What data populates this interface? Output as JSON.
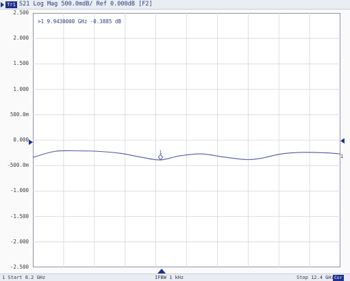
{
  "header": {
    "trace_badge": "Tr1",
    "trace_info": "S21 Log Mag 500.0mdB/ Ref 0.000dB [F2]"
  },
  "marker": {
    "readout": ">1  9.9430000 GHz -0.3885 dB",
    "number": "1"
  },
  "y_axis": {
    "labels": [
      "2.500",
      "2.000",
      "1.500",
      "1.000",
      "500.0m",
      "0.000",
      "-500.0m",
      "-1.000",
      "-1.500",
      "-2.000",
      "-2.500"
    ]
  },
  "trace_end_label": "1",
  "footer": {
    "start": "1  Start 8.2 GHz",
    "ifbw": "IFBW 1 kHz",
    "stop": "Stop 12.4 GHz",
    "cor": "Cor"
  },
  "chart_data": {
    "type": "line",
    "xlim": [
      8.2,
      12.4
    ],
    "ylim": [
      -2.5,
      2.5
    ],
    "series": [
      {
        "x": [
          8.2,
          8.5,
          8.8,
          9.1,
          9.4,
          9.7,
          9.943,
          10.2,
          10.5,
          10.8,
          11.1,
          11.3,
          11.6,
          11.9,
          12.2,
          12.4
        ],
        "values": [
          -0.34,
          -0.22,
          -0.21,
          -0.22,
          -0.26,
          -0.34,
          -0.3885,
          -0.31,
          -0.27,
          -0.33,
          -0.38,
          -0.36,
          -0.27,
          -0.24,
          -0.25,
          -0.27
        ]
      }
    ],
    "marker_x": 9.943,
    "marker_y": -0.3885,
    "grid": true
  },
  "colors": {
    "trace": "#4f55a8",
    "grid": "#d3d6df"
  }
}
